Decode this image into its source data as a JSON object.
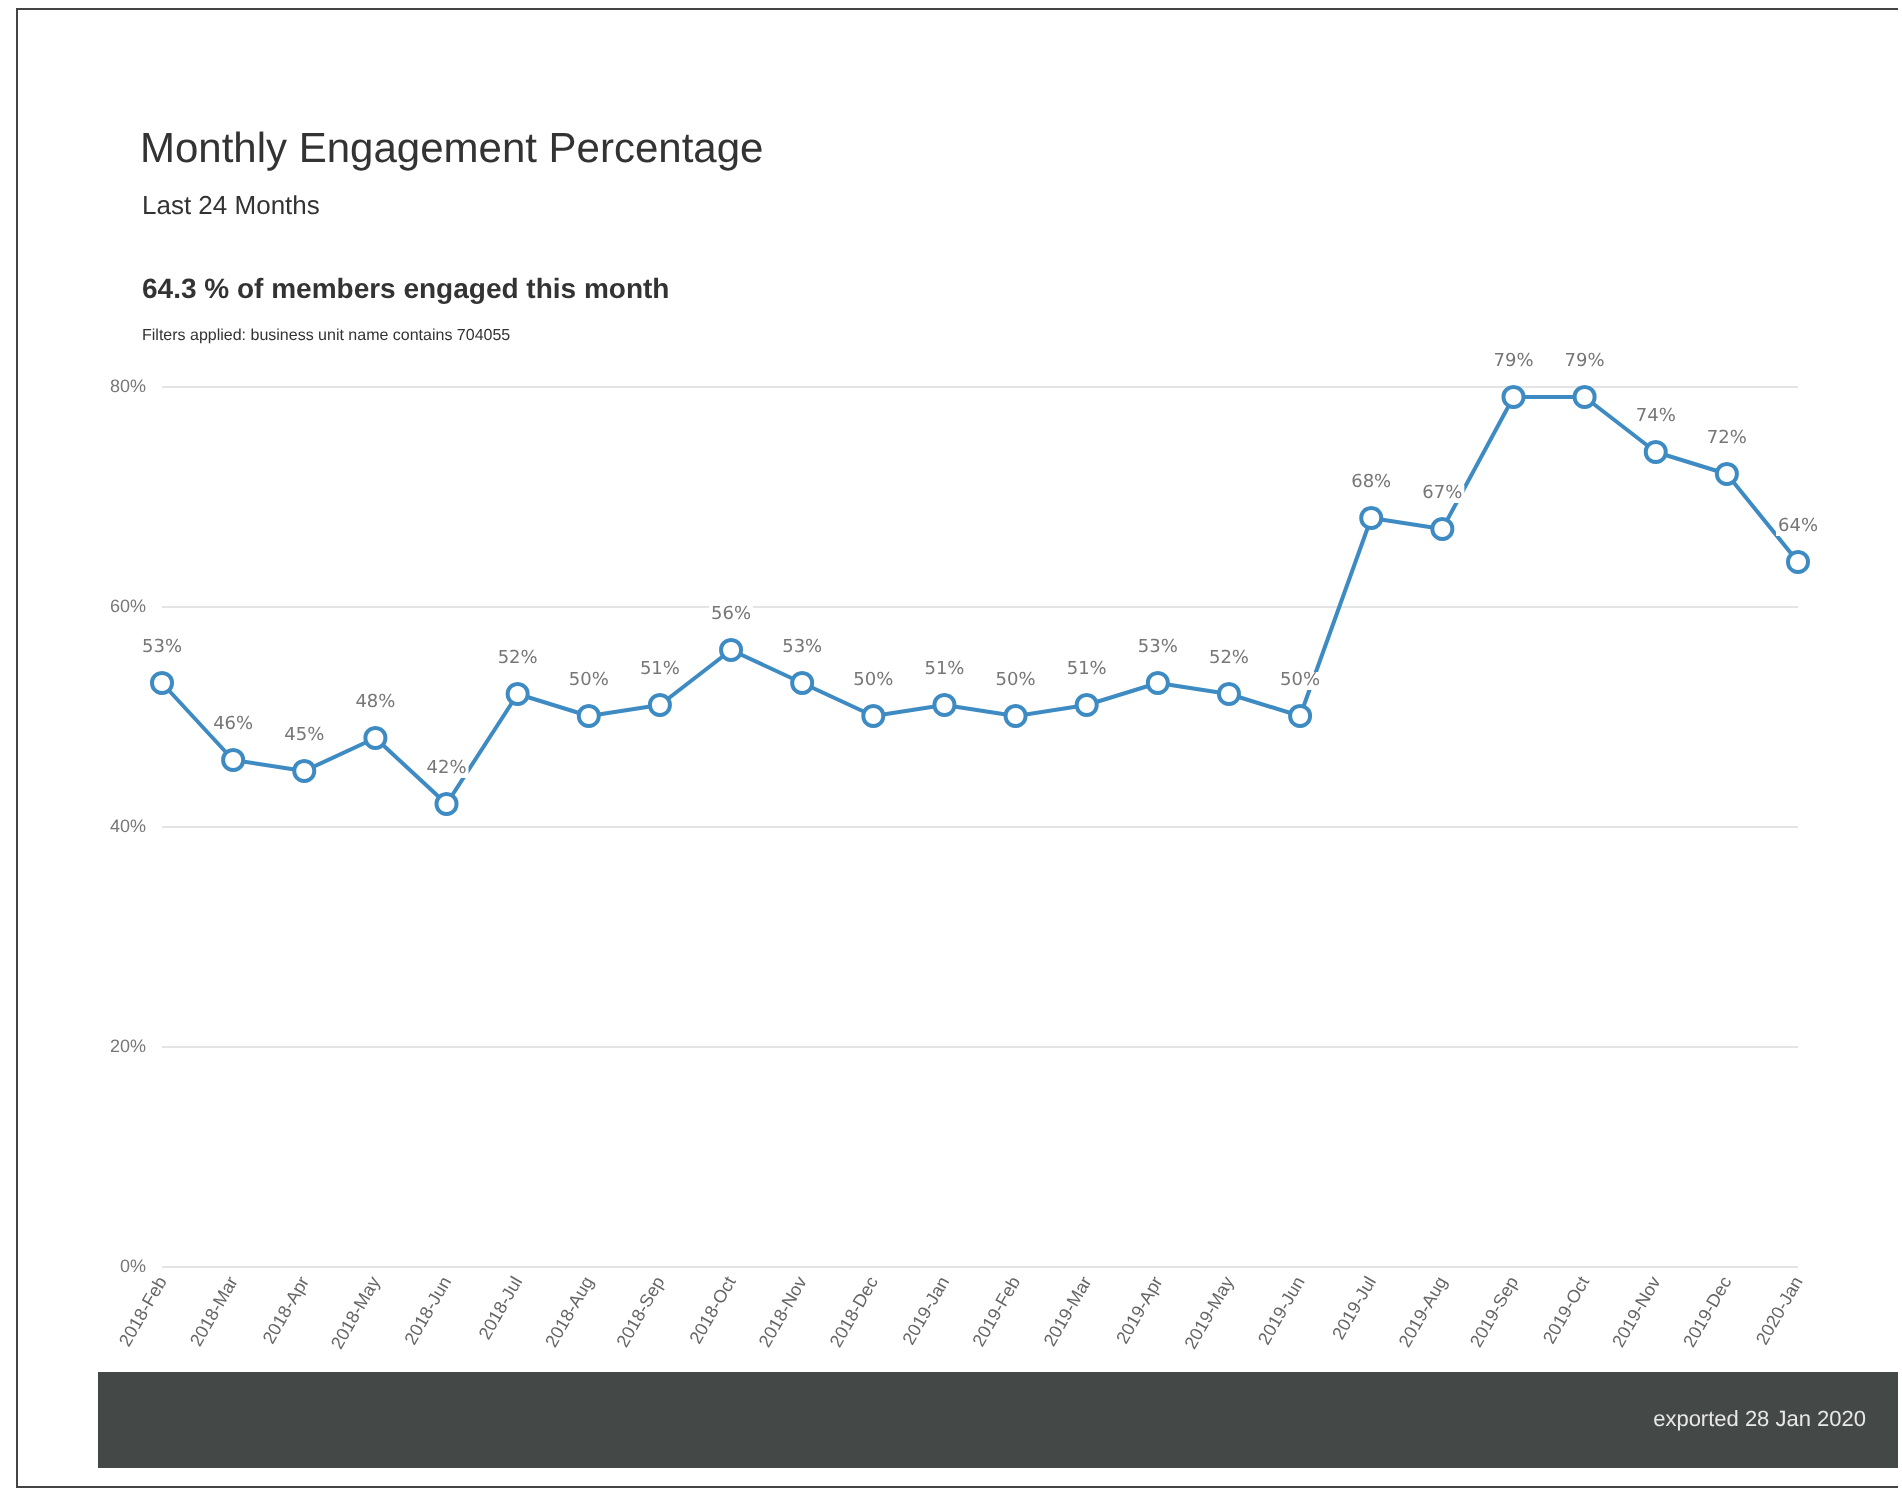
{
  "chart_data": {
    "type": "line",
    "title": "Monthly Engagement Percentage",
    "subtitle": "Last 24 Months",
    "annotations": [
      "64.3 %  of members engaged this month",
      "Filters applied: business unit name contains 704055",
      "exported 28 Jan 2020"
    ],
    "categories": [
      "2018-Feb",
      "2018-Mar",
      "2018-Apr",
      "2018-May",
      "2018-Jun",
      "2018-Jul",
      "2018-Aug",
      "2018-Sep",
      "2018-Oct",
      "2018-Nov",
      "2018-Dec",
      "2019-Jan",
      "2019-Feb",
      "2019-Mar",
      "2019-Apr",
      "2019-May",
      "2019-Jun",
      "2019-Jul",
      "2019-Aug",
      "2019-Sep",
      "2019-Oct",
      "2019-Nov",
      "2019-Dec",
      "2020-Jan"
    ],
    "series": [
      {
        "color": "#3d8bc2",
        "values": [
          53,
          46,
          45,
          48,
          42,
          52,
          50,
          51,
          56,
          53,
          50,
          51,
          50,
          51,
          53,
          52,
          50,
          68,
          67,
          79,
          79,
          74,
          72,
          64
        ],
        "value_labels": [
          "53%",
          "46%",
          "45%",
          "48%",
          "42%",
          "52%",
          "50%",
          "51%",
          "56%",
          "53%",
          "50%",
          "51%",
          "50%",
          "51%",
          "53%",
          "52%",
          "50%",
          "68%",
          "67%",
          "79%",
          "79%",
          "74%",
          "72%",
          "64%"
        ]
      }
    ],
    "ylim": [
      0,
      80
    ],
    "yticks": [
      {
        "value": 0,
        "label": "0%"
      },
      {
        "value": 20,
        "label": "20%"
      },
      {
        "value": 40,
        "label": "40%"
      },
      {
        "value": 60,
        "label": "60%"
      },
      {
        "value": 80,
        "label": "80%"
      }
    ],
    "grid": "y",
    "marker": "circle",
    "line_style": "solid"
  }
}
